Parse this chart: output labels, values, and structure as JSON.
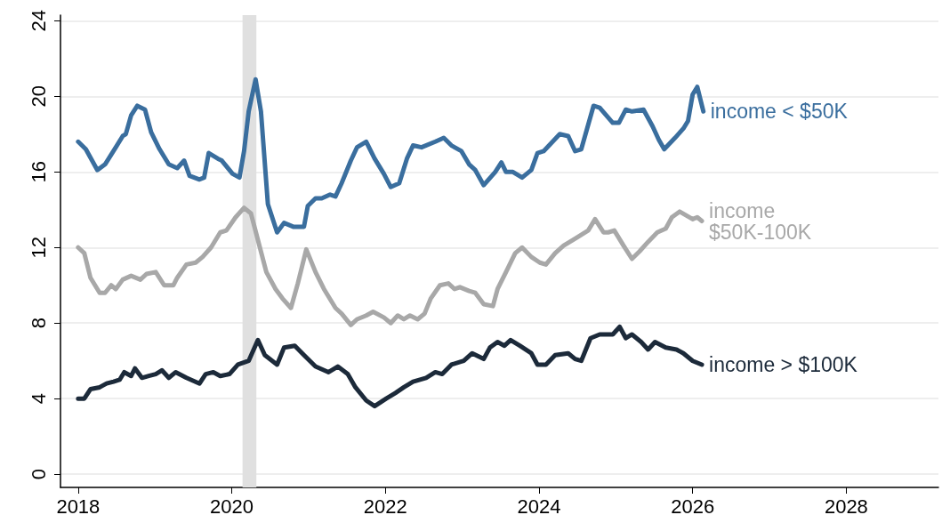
{
  "chart_data": {
    "type": "line",
    "xlim": [
      2017.77,
      2029.2
    ],
    "xticks": [
      2018,
      2020,
      2022,
      2024,
      2026,
      2028
    ],
    "ylim": [
      -0.7,
      24.3
    ],
    "yticks": [
      0,
      4,
      8,
      12,
      16,
      20,
      24
    ],
    "grid": "y",
    "legend": false,
    "marker": "none",
    "line_style": "solid",
    "bands": [
      {
        "axis": "x",
        "from": 2020.14,
        "to": 2020.32,
        "color": "#e0e0e0"
      }
    ],
    "series": [
      {
        "name": "income < $50K",
        "color": "#3a6e9e",
        "x": [
          2018.0,
          2018.1,
          2018.25,
          2018.35,
          2018.49,
          2018.58,
          2018.62,
          2018.69,
          2018.77,
          2018.87,
          2018.95,
          2019.06,
          2019.18,
          2019.29,
          2019.38,
          2019.45,
          2019.58,
          2019.64,
          2019.7,
          2019.82,
          2019.87,
          2020.01,
          2020.1,
          2020.16,
          2020.22,
          2020.31,
          2020.38,
          2020.47,
          2020.59,
          2020.68,
          2020.8,
          2020.94,
          2020.99,
          2021.09,
          2021.17,
          2021.28,
          2021.35,
          2021.43,
          2021.55,
          2021.63,
          2021.75,
          2021.86,
          2021.98,
          2022.07,
          2022.18,
          2022.28,
          2022.36,
          2022.47,
          2022.65,
          2022.76,
          2022.86,
          2022.99,
          2023.09,
          2023.17,
          2023.28,
          2023.43,
          2023.51,
          2023.57,
          2023.66,
          2023.78,
          2023.9,
          2023.98,
          2024.06,
          2024.27,
          2024.38,
          2024.47,
          2024.55,
          2024.71,
          2024.79,
          2024.96,
          2025.04,
          2025.13,
          2025.21,
          2025.36,
          2025.48,
          2025.56,
          2025.63,
          2025.77,
          2025.88,
          2025.94,
          2026.0,
          2026.06,
          2026.14
        ],
        "values": [
          17.6,
          17.2,
          16.1,
          16.4,
          17.3,
          17.9,
          18.0,
          19.0,
          19.5,
          19.3,
          18.1,
          17.2,
          16.4,
          16.2,
          16.6,
          15.8,
          15.6,
          15.7,
          17.0,
          16.7,
          16.6,
          15.9,
          15.7,
          17.1,
          19.2,
          20.9,
          19.2,
          14.3,
          12.8,
          13.3,
          13.1,
          13.1,
          14.2,
          14.6,
          14.6,
          14.8,
          14.7,
          15.4,
          16.6,
          17.3,
          17.6,
          16.7,
          15.9,
          15.2,
          15.4,
          16.7,
          17.4,
          17.3,
          17.6,
          17.8,
          17.4,
          17.1,
          16.4,
          16.1,
          15.3,
          16.0,
          16.5,
          16.0,
          16.0,
          15.7,
          16.1,
          17.0,
          17.1,
          18.0,
          17.9,
          17.1,
          17.2,
          19.5,
          19.4,
          18.6,
          18.6,
          19.3,
          19.2,
          19.3,
          18.4,
          17.7,
          17.2,
          17.8,
          18.3,
          18.7,
          20.1,
          20.5,
          19.2
        ]
      },
      {
        "name": "income\n$50K-100K",
        "color": "#a8a8a8",
        "x": [
          2018.0,
          2018.08,
          2018.16,
          2018.28,
          2018.35,
          2018.43,
          2018.49,
          2018.58,
          2018.69,
          2018.81,
          2018.89,
          2019.01,
          2019.12,
          2019.24,
          2019.29,
          2019.41,
          2019.53,
          2019.62,
          2019.73,
          2019.85,
          2019.93,
          2020.05,
          2020.16,
          2020.25,
          2020.34,
          2020.45,
          2020.57,
          2020.66,
          2020.77,
          2020.86,
          2020.97,
          2021.09,
          2021.2,
          2021.35,
          2021.43,
          2021.55,
          2021.63,
          2021.75,
          2021.84,
          2021.98,
          2022.07,
          2022.16,
          2022.24,
          2022.32,
          2022.42,
          2022.51,
          2022.59,
          2022.71,
          2022.82,
          2022.9,
          2022.97,
          2023.09,
          2023.17,
          2023.28,
          2023.4,
          2023.46,
          2023.57,
          2023.69,
          2023.78,
          2023.9,
          2024.01,
          2024.09,
          2024.21,
          2024.32,
          2024.44,
          2024.52,
          2024.64,
          2024.73,
          2024.84,
          2024.9,
          2024.98,
          2025.1,
          2025.21,
          2025.31,
          2025.42,
          2025.54,
          2025.65,
          2025.73,
          2025.83,
          2026.0,
          2026.06,
          2026.12
        ],
        "values": [
          12.0,
          11.7,
          10.4,
          9.6,
          9.6,
          10.0,
          9.8,
          10.3,
          10.5,
          10.3,
          10.6,
          10.7,
          10.0,
          10.0,
          10.4,
          11.1,
          11.2,
          11.5,
          12.0,
          12.8,
          12.9,
          13.6,
          14.1,
          13.8,
          12.4,
          10.7,
          9.8,
          9.3,
          8.8,
          10.1,
          11.9,
          10.7,
          9.8,
          8.8,
          8.5,
          7.9,
          8.2,
          8.4,
          8.6,
          8.3,
          8.0,
          8.4,
          8.2,
          8.4,
          8.2,
          8.5,
          9.3,
          10.0,
          10.1,
          9.8,
          9.9,
          9.7,
          9.6,
          9.0,
          8.9,
          9.8,
          10.7,
          11.7,
          12.0,
          11.5,
          11.2,
          11.1,
          11.7,
          12.1,
          12.4,
          12.6,
          12.9,
          13.5,
          12.8,
          12.8,
          12.9,
          12.1,
          11.4,
          11.8,
          12.3,
          12.8,
          13.0,
          13.6,
          13.9,
          13.5,
          13.6,
          13.4
        ]
      },
      {
        "name": "income > $100K",
        "color": "#1c2a3a",
        "x": [
          2018.0,
          2018.08,
          2018.16,
          2018.28,
          2018.37,
          2018.46,
          2018.54,
          2018.6,
          2018.69,
          2018.74,
          2018.83,
          2018.92,
          2019.01,
          2019.09,
          2019.18,
          2019.27,
          2019.41,
          2019.58,
          2019.66,
          2019.76,
          2019.85,
          2019.97,
          2020.08,
          2020.22,
          2020.34,
          2020.43,
          2020.59,
          2020.68,
          2020.82,
          2020.94,
          2021.09,
          2021.26,
          2021.38,
          2021.51,
          2021.61,
          2021.75,
          2021.86,
          2022.01,
          2022.13,
          2022.24,
          2022.36,
          2022.53,
          2022.65,
          2022.74,
          2022.86,
          2023.02,
          2023.13,
          2023.28,
          2023.36,
          2023.46,
          2023.55,
          2023.63,
          2023.75,
          2023.9,
          2023.98,
          2024.09,
          2024.21,
          2024.38,
          2024.47,
          2024.55,
          2024.67,
          2024.79,
          2024.96,
          2025.05,
          2025.13,
          2025.21,
          2025.33,
          2025.42,
          2025.51,
          2025.65,
          2025.79,
          2025.88,
          2026.0,
          2026.12
        ],
        "values": [
          4.0,
          4.0,
          4.5,
          4.6,
          4.8,
          4.9,
          5.0,
          5.4,
          5.2,
          5.6,
          5.1,
          5.2,
          5.3,
          5.5,
          5.1,
          5.4,
          5.1,
          4.8,
          5.3,
          5.4,
          5.2,
          5.3,
          5.8,
          6.0,
          7.1,
          6.3,
          5.8,
          6.7,
          6.8,
          6.3,
          5.7,
          5.4,
          5.7,
          5.3,
          4.6,
          3.9,
          3.6,
          4.0,
          4.3,
          4.6,
          4.9,
          5.1,
          5.4,
          5.3,
          5.8,
          6.0,
          6.4,
          6.1,
          6.7,
          7.0,
          6.8,
          7.1,
          6.8,
          6.4,
          5.8,
          5.8,
          6.3,
          6.4,
          6.1,
          6.0,
          7.2,
          7.4,
          7.4,
          7.8,
          7.2,
          7.4,
          7.0,
          6.6,
          7.0,
          6.7,
          6.6,
          6.4,
          6.0,
          5.8
        ]
      }
    ]
  }
}
